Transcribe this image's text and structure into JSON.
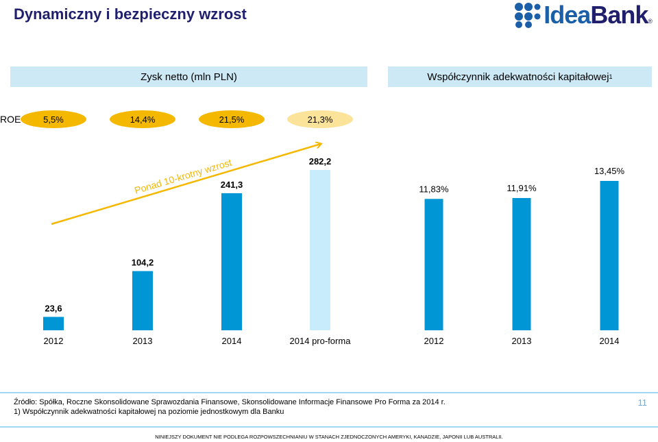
{
  "title": "Dynamiczny i bezpieczny wzrost",
  "logo": {
    "idea": "Idea",
    "bank": "Bank",
    "reg": "®",
    "name": "logo-ideabank"
  },
  "left_header": "Zysk netto (mln PLN)",
  "right_header": {
    "text": "Współczynnik adekwatności kapitałowej",
    "sup": "1"
  },
  "roe": {
    "label": "ROE",
    "values": [
      "5,5%",
      "14,4%",
      "21,5%",
      "21,3%"
    ]
  },
  "arrow_label": "Ponad 10-krotny wzrost",
  "colors": {
    "bar": "#0096d6",
    "bar_light": "#c8ecfb",
    "header_bg": "#cde9f6",
    "roe_oval": "#f5b800",
    "roe_oval_light": "#fbe39a",
    "arrow": "#f5b800"
  },
  "chart_data": [
    {
      "type": "bar",
      "title": "Zysk netto (mln PLN)",
      "categories": [
        "2012",
        "2013",
        "2014",
        "2014 pro-forma"
      ],
      "values": [
        23.6,
        104.2,
        241.3,
        282.2
      ],
      "labels": [
        "23,6",
        "104,2",
        "241,3",
        "282,2"
      ],
      "highlight_last": true,
      "ylim": [
        0,
        300
      ]
    },
    {
      "type": "bar",
      "title": "Współczynnik adekwatności kapitałowej",
      "categories": [
        "2012",
        "2013",
        "2014"
      ],
      "values": [
        11.83,
        11.91,
        13.45
      ],
      "labels": [
        "11,83%",
        "11,91%",
        "13,45%"
      ],
      "ylim": [
        0,
        14
      ]
    }
  ],
  "footer": {
    "source": "Źródło: Spółka, Roczne Skonsolidowane Sprawozdania Finansowe, Skonsolidowane Informacje Finansowe Pro Forma za 2014 r.",
    "note": "1) Współczynnik adekwatności kapitałowej na poziomie jednostkowym dla Banku",
    "page": "11",
    "disclaimer": "NINIEJSZY DOKUMENT NIE PODLEGA ROZPOWSZECHNIANIU W STANACH ZJEDNOCZONYCH AMERYKI, KANADZIE, JAPONII LUB AUSTRALII."
  }
}
